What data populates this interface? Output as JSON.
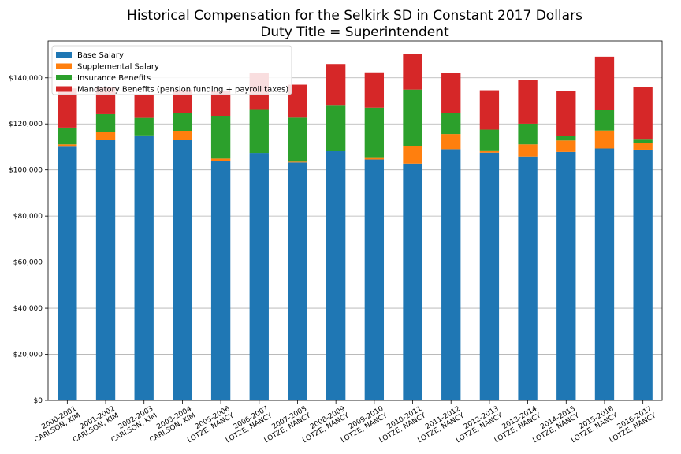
{
  "chart_data": {
    "type": "bar",
    "stacked": true,
    "title": "Historical Compensation for the Selkirk SD in Constant 2017 Dollars",
    "subtitle": "Duty Title = Superintendent",
    "xlabel": "",
    "ylabel": "",
    "ylim": [
      0,
      156000
    ],
    "yticks": [
      "$0",
      "$20,000",
      "$40,000",
      "$60,000",
      "$80,000",
      "$100,000",
      "$120,000",
      "$140,000"
    ],
    "ytick_values": [
      0,
      20000,
      40000,
      60000,
      80000,
      100000,
      120000,
      140000
    ],
    "grid": "horizontal",
    "legend_position": "top-left",
    "categories": [
      [
        "2000-2001",
        "CARLSON, KIM"
      ],
      [
        "2001-2002",
        "CARLSON, KIM"
      ],
      [
        "2002-2003",
        "CARLSON, KIM"
      ],
      [
        "2003-2004",
        "CARLSON, KIM"
      ],
      [
        "2005-2006",
        "LOTZE, NANCY"
      ],
      [
        "2006-2007",
        "LOTZE, NANCY"
      ],
      [
        "2007-2008",
        "LOTZE, NANCY"
      ],
      [
        "2008-2009",
        "LOTZE, NANCY"
      ],
      [
        "2009-2010",
        "LOTZE, NANCY"
      ],
      [
        "2010-2011",
        "LOTZE, NANCY"
      ],
      [
        "2011-2012",
        "LOTZE, NANCY"
      ],
      [
        "2012-2013",
        "LOTZE, NANCY"
      ],
      [
        "2013-2014",
        "LOTZE, NANCY"
      ],
      [
        "2014-2015",
        "LOTZE, NANCY"
      ],
      [
        "2015-2016",
        "LOTZE, NANCY"
      ],
      [
        "2016-2017",
        "LOTZE, NANCY"
      ]
    ],
    "series": [
      {
        "name": "Base Salary",
        "color": "#1f77b4",
        "values": [
          110400,
          113200,
          115000,
          113200,
          104000,
          107400,
          103200,
          108200,
          104500,
          102700,
          109000,
          107500,
          105800,
          107800,
          109300,
          108800
        ]
      },
      {
        "name": "Supplemental Salary",
        "color": "#ff7f0e",
        "values": [
          700,
          3200,
          0,
          3800,
          900,
          0,
          700,
          0,
          1000,
          7800,
          6600,
          1000,
          5300,
          5000,
          7800,
          3000
        ]
      },
      {
        "name": "Insurance Benefits",
        "color": "#2ca02c",
        "values": [
          7300,
          7800,
          7600,
          7800,
          18600,
          19000,
          18800,
          20000,
          21500,
          24400,
          9000,
          9000,
          9000,
          1900,
          9000,
          1700
        ]
      },
      {
        "name": "Mandatory Benefits (pension funding + payroll taxes)",
        "color": "#d62728",
        "values": [
          17000,
          11800,
          10000,
          10000,
          11000,
          15700,
          14300,
          17800,
          15400,
          15500,
          17500,
          17100,
          19000,
          19600,
          23100,
          22500
        ]
      }
    ]
  }
}
